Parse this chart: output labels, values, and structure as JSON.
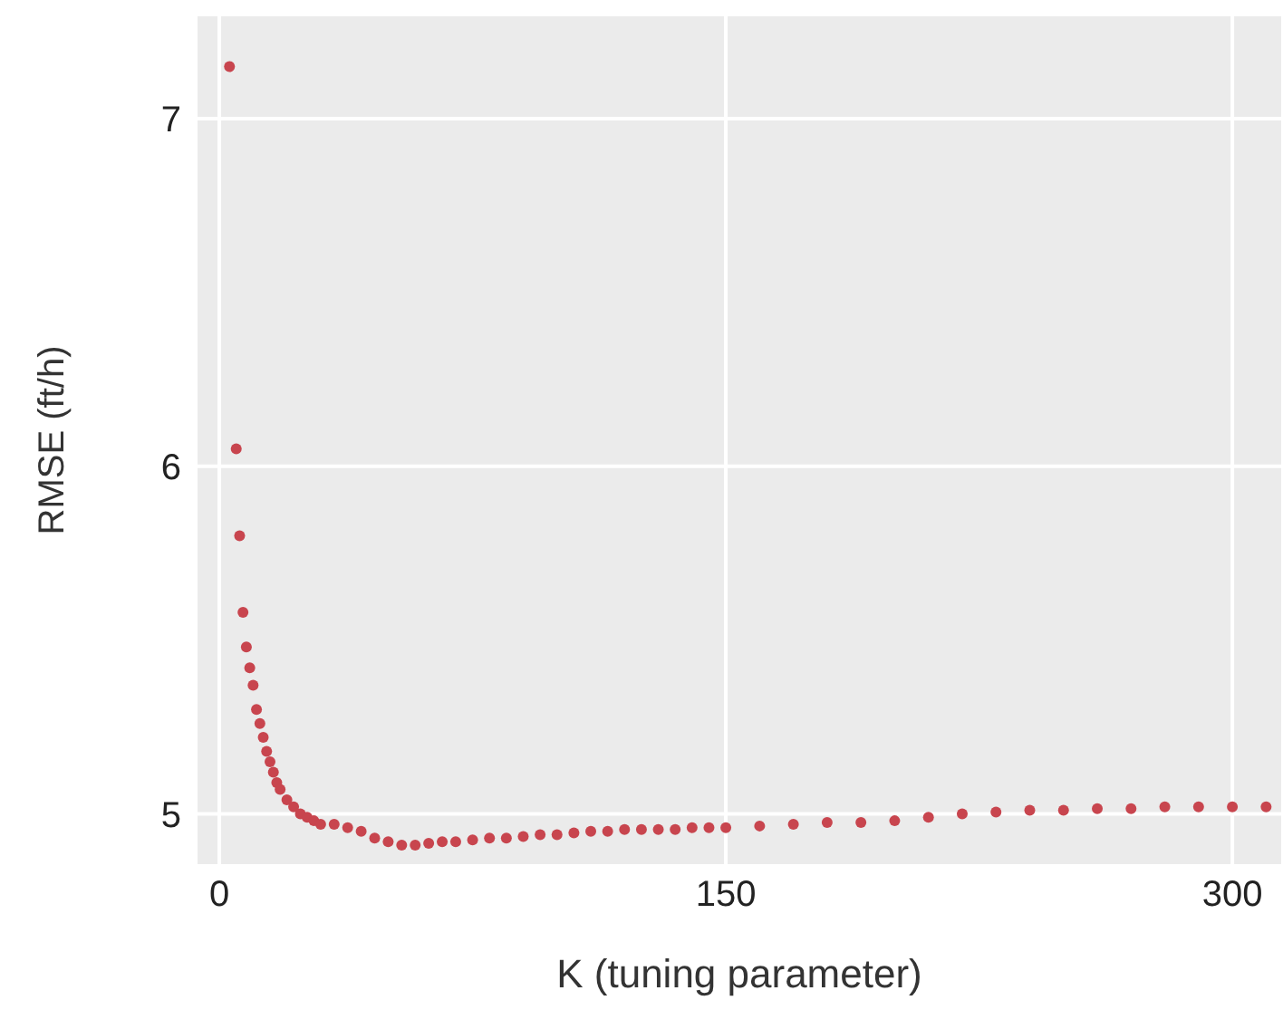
{
  "chart_data": {
    "type": "scatter",
    "xlabel": "K (tuning parameter)",
    "ylabel": "RMSE (ft/h)",
    "x": [
      3,
      5,
      6,
      7,
      8,
      9,
      10,
      11,
      12,
      13,
      14,
      15,
      16,
      17,
      18,
      20,
      22,
      24,
      26,
      28,
      30,
      34,
      38,
      42,
      46,
      50,
      54,
      58,
      62,
      66,
      70,
      75,
      80,
      85,
      90,
      95,
      100,
      105,
      110,
      115,
      120,
      125,
      130,
      135,
      140,
      145,
      150,
      160,
      170,
      180,
      190,
      200,
      210,
      220,
      230,
      240,
      250,
      260,
      270,
      280,
      290,
      300,
      310
    ],
    "series": [
      {
        "color": "#c8454e",
        "values": [
          7.15,
          6.05,
          5.8,
          5.58,
          5.48,
          5.42,
          5.37,
          5.3,
          5.26,
          5.22,
          5.18,
          5.15,
          5.12,
          5.09,
          5.07,
          5.04,
          5.02,
          5.0,
          4.99,
          4.98,
          4.97,
          4.97,
          4.96,
          4.95,
          4.93,
          4.92,
          4.91,
          4.91,
          4.915,
          4.92,
          4.92,
          4.925,
          4.93,
          4.93,
          4.935,
          4.94,
          4.94,
          4.945,
          4.95,
          4.95,
          4.955,
          4.955,
          4.955,
          4.955,
          4.96,
          4.96,
          4.96,
          4.965,
          4.97,
          4.975,
          4.975,
          4.98,
          4.99,
          5.0,
          5.005,
          5.01,
          5.01,
          5.015,
          5.015,
          5.02,
          5.02,
          5.02,
          5.02
        ]
      }
    ],
    "xlim": [
      -7,
      315
    ],
    "xticks": [
      0,
      150,
      300
    ],
    "ylim": [
      4.85,
      7.3
    ],
    "yticks": [
      5,
      6,
      7
    ],
    "grid": true,
    "marker": "circle",
    "legend": false
  }
}
